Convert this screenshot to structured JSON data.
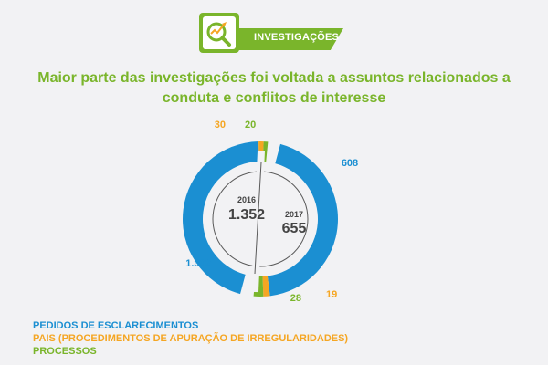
{
  "badge": {
    "label": "INVESTIGAÇÕES",
    "icon": "magnifier-chart-icon"
  },
  "headline": "Maior parte das investigações foi voltada a assuntos relacionados a conduta e conflitos de interesse",
  "colors": {
    "blue": "#1b8fd2",
    "orange": "#f5a623",
    "green": "#7ab52b",
    "text_dark": "#444444"
  },
  "chart_data": [
    {
      "type": "pie",
      "year": "2016",
      "total": "1.352",
      "categories": [
        "PEDIDOS DE ESCLARECIMENTOS",
        "PAIS (PROCEDIMENTOS DE APURAÇÃO DE IRREGULARIDADES)",
        "PROCESSOS"
      ],
      "values": [
        1302,
        30,
        20
      ],
      "value_labels": [
        "1.302",
        "30",
        "20"
      ]
    },
    {
      "type": "pie",
      "year": "2017",
      "total": "655",
      "categories": [
        "PEDIDOS DE ESCLARECIMENTOS",
        "PAIS (PROCEDIMENTOS DE APURAÇÃO DE IRREGULARIDADES)",
        "PROCESSOS"
      ],
      "values": [
        608,
        19,
        28
      ],
      "value_labels": [
        "608",
        "19",
        "28"
      ]
    }
  ],
  "legend": [
    {
      "label": "PEDIDOS DE ESCLARECIMENTOS",
      "color": "#1b8fd2"
    },
    {
      "label": "PAIS (PROCEDIMENTOS DE APURAÇÃO DE IRREGULARIDADES)",
      "color": "#f5a623"
    },
    {
      "label": "PROCESSOS",
      "color": "#7ab52b"
    }
  ]
}
